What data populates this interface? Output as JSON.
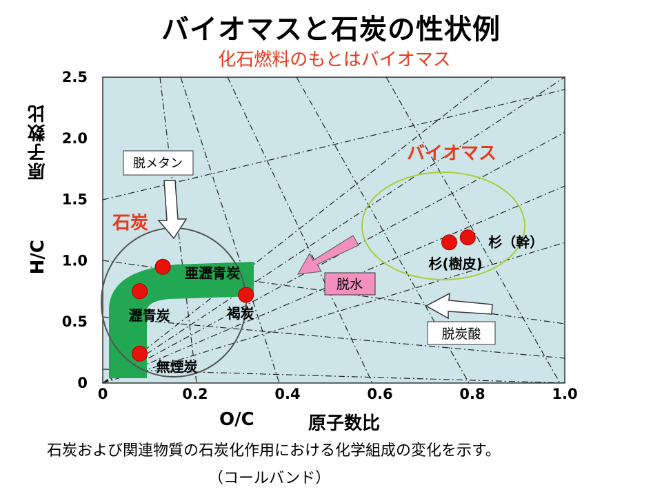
{
  "title": "バイオマスと石炭の性状例",
  "subtitle": "化石燃料のもとはバイオマス",
  "chart_data": {
    "type": "scatter",
    "xlabel": "O/C",
    "xlabel_suffix": "原子数比",
    "ylabel": "原子数比",
    "ylabel_prefix": "H/C",
    "xlim": [
      0,
      1.0
    ],
    "ylim": [
      0,
      2.5
    ],
    "xticks": [
      "0",
      "0.2",
      "0.4",
      "0.6",
      "0.8",
      "1.0"
    ],
    "yticks": [
      "0",
      "0.5",
      "1.0",
      "1.5",
      "2.0",
      "2.5"
    ],
    "points": [
      {
        "label": "亜瀝青炭",
        "x": 0.13,
        "y": 0.95
      },
      {
        "label": "瀝青炭",
        "x": 0.08,
        "y": 0.75
      },
      {
        "label": "褐炭",
        "x": 0.31,
        "y": 0.72
      },
      {
        "label": "無煙炭",
        "x": 0.08,
        "y": 0.24
      },
      {
        "label": "杉（幹）",
        "x": 0.79,
        "y": 1.19
      },
      {
        "label": "杉(樹皮)",
        "x": 0.75,
        "y": 1.15
      }
    ],
    "regions": [
      {
        "label": "石炭"
      },
      {
        "label": "バイオマス"
      }
    ],
    "arrows": [
      {
        "label": "脱メタン"
      },
      {
        "label": "脱水"
      },
      {
        "label": "脱炭酸"
      }
    ],
    "colors": {
      "plot_bg": "#cde5e8",
      "coal_band": "#22a852",
      "point": "#e8120c",
      "region_label": "#e8381c",
      "biomass_ellipse": "#a6cf38",
      "coal_ellipse": "#555555",
      "dehydration_arrow": "#f490c0"
    }
  },
  "caption": "石炭および関連物質の石炭化作用における化学組成の変化を示す。",
  "caption2": "（コールバンド）"
}
